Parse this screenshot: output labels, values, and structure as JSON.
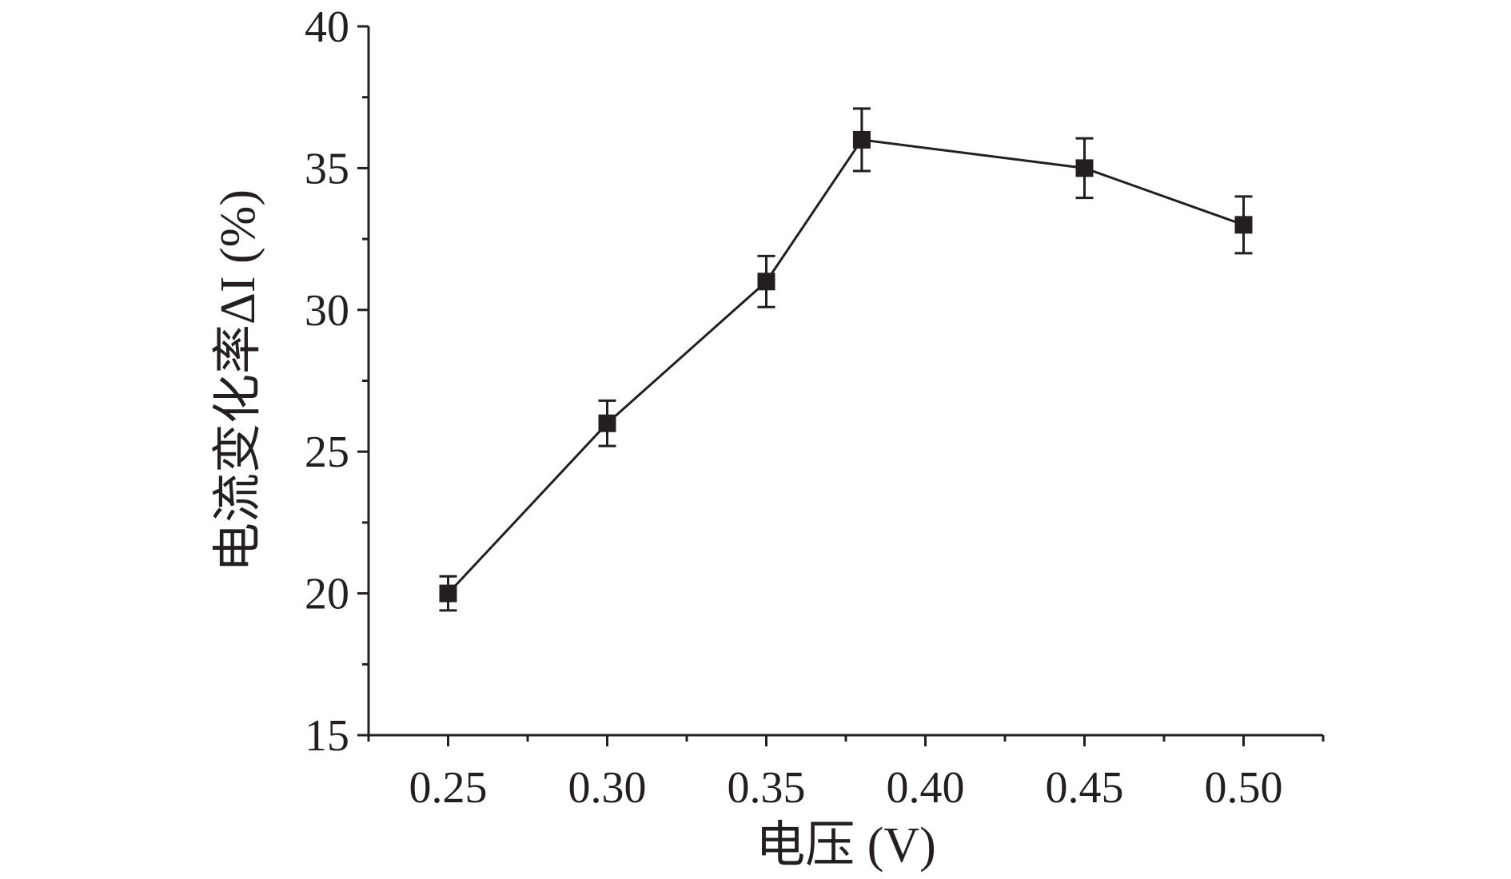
{
  "chart_data": {
    "type": "line",
    "xlabel": "电压 (V)",
    "ylabel": "电流变化率ΔI (%)",
    "xlim": [
      0.225,
      0.525
    ],
    "ylim": [
      15,
      40
    ],
    "x_ticks": [
      0.25,
      0.3,
      0.35,
      0.4,
      0.45,
      0.5
    ],
    "x_tick_labels": [
      "0.25",
      "0.30",
      "0.35",
      "0.40",
      "0.45",
      "0.50"
    ],
    "x_minor_ticks": [
      0.225,
      0.275,
      0.325,
      0.375,
      0.425,
      0.475,
      0.525
    ],
    "y_ticks": [
      15,
      20,
      25,
      30,
      35,
      40
    ],
    "y_tick_labels": [
      "15",
      "20",
      "25",
      "30",
      "35",
      "40"
    ],
    "y_minor_ticks": [
      17.5,
      22.5,
      27.5,
      32.5,
      37.5
    ],
    "grid": false,
    "marker": "square",
    "color": "#231f20",
    "series": [
      {
        "x": [
          0.25,
          0.3,
          0.35,
          0.38,
          0.45,
          0.5
        ],
        "y": [
          20,
          26,
          31,
          36,
          35,
          33
        ],
        "error": [
          0.6,
          0.8,
          0.9,
          1.1,
          1.05,
          1.0
        ]
      }
    ]
  }
}
